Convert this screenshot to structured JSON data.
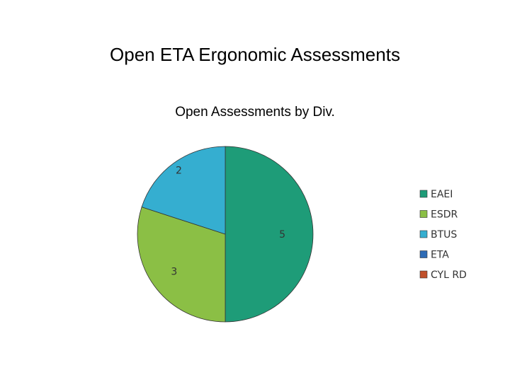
{
  "page": {
    "title": "Open ETA Ergonomic Assessments"
  },
  "chart_data": {
    "type": "pie",
    "title": "Open Assessments by Div.",
    "categories": [
      "EAEI",
      "ESDR",
      "BTUS",
      "ETA",
      "CYL RD"
    ],
    "values": [
      5,
      3,
      2,
      0,
      0
    ],
    "data_labels": [
      "5",
      "3",
      "2",
      "",
      ""
    ],
    "colors": [
      "#1e9c78",
      "#8bbf45",
      "#35aed0",
      "#2e6bb5",
      "#c0502a"
    ],
    "start_angle": "12 o'clock",
    "direction": "clockwise",
    "legend": {
      "position": "right",
      "entries": [
        "EAEI",
        "ESDR",
        "BTUS",
        "ETA",
        "CYL RD"
      ]
    }
  }
}
